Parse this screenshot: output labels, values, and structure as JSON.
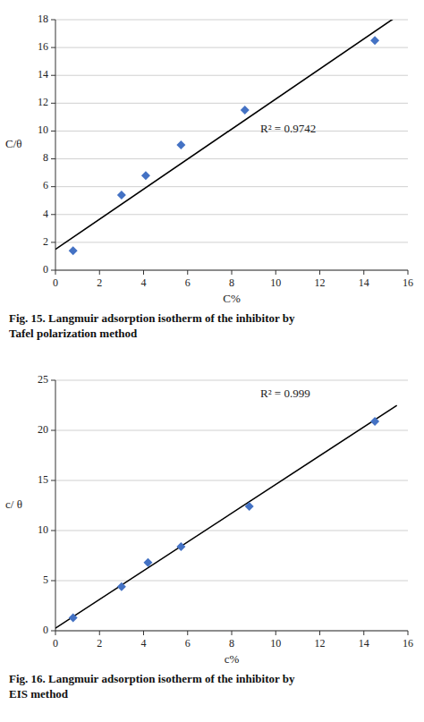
{
  "chart_data": [
    {
      "type": "scatter",
      "x": [
        0.8,
        3.0,
        4.1,
        5.7,
        8.6,
        14.5
      ],
      "values": [
        1.4,
        5.4,
        6.8,
        9.0,
        11.5,
        16.5
      ],
      "color": "#4472C4",
      "marker": "diamond",
      "trendline": {
        "slope": 1.08,
        "intercept": 1.5,
        "x": [
          0,
          15.5
        ],
        "color": "black"
      },
      "annotations": [
        {
          "text": "R² = 0.9742",
          "x": 9.3,
          "y": 10.5
        }
      ],
      "xlabel": "C%",
      "ylabel": "C/θ",
      "xlim": [
        0,
        16
      ],
      "ylim": [
        0,
        18
      ],
      "xticks": [
        0,
        2,
        4,
        6,
        8,
        10,
        12,
        14,
        16
      ],
      "yticks": [
        0,
        2,
        4,
        6,
        8,
        10,
        12,
        14,
        16,
        18
      ],
      "grid": true,
      "caption": [
        "Fig. 15. Langmuir adsorption isotherm of the inhibitor by",
        "Tafel polarization method"
      ]
    },
    {
      "type": "scatter",
      "x": [
        0.8,
        3.0,
        4.2,
        5.7,
        8.8,
        14.5
      ],
      "values": [
        1.3,
        4.4,
        6.8,
        8.4,
        12.4,
        20.9
      ],
      "color": "#4472C4",
      "marker": "diamond",
      "trendline": {
        "slope": 1.435,
        "intercept": 0.25,
        "x": [
          0,
          15.5
        ],
        "color": "black"
      },
      "annotations": [
        {
          "text": "R² = 0.999",
          "x": 9.3,
          "y": 24.2
        }
      ],
      "xlabel": "c%",
      "ylabel": "c/ θ",
      "xlim": [
        0,
        16
      ],
      "ylim": [
        0,
        25
      ],
      "xticks": [
        0,
        2,
        4,
        6,
        8,
        10,
        12,
        14,
        16
      ],
      "yticks": [
        0,
        5,
        10,
        15,
        20,
        25
      ],
      "grid": true,
      "caption": [
        "Fig. 16. Langmuir adsorption isotherm of the inhibitor by",
        "EIS method"
      ]
    }
  ]
}
